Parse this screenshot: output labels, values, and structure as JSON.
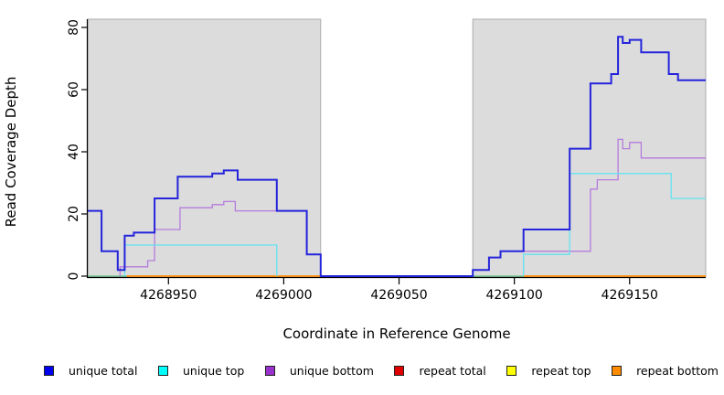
{
  "figure": {
    "x_axis_label": "Coordinate in Reference Genome",
    "y_axis_label": "Read Coverage Depth"
  },
  "legend": {
    "items": [
      {
        "label": "unique total",
        "color": "#0000ee"
      },
      {
        "label": "unique top",
        "color": "#00ffff"
      },
      {
        "label": "unique bottom",
        "color": "#9932cc"
      },
      {
        "label": "repeat total",
        "color": "#e00000"
      },
      {
        "label": "repeat top",
        "color": "#ffff00"
      },
      {
        "label": "repeat bottom",
        "color": "#ff8c00"
      }
    ],
    "swatch_border_color": "#222222"
  },
  "chart_data": {
    "type": "line",
    "line_style": "step-after",
    "title": "",
    "xlabel": "Coordinate in Reference Genome",
    "ylabel": "Read Coverage Depth",
    "x_range": [
      4268915,
      4269183
    ],
    "y_range": [
      0,
      83
    ],
    "x_ticks": [
      4268950,
      4269000,
      4269050,
      4269100,
      4269150
    ],
    "y_ticks": [
      0,
      20,
      40,
      60,
      80
    ],
    "grid": false,
    "legend_position": "bottom",
    "shaded_regions": [
      {
        "x0": 4268915,
        "x1": 4269016,
        "fill": "#dcdcdc",
        "stroke": "#ababab"
      },
      {
        "x0": 4269082,
        "x1": 4269183,
        "fill": "#dcdcdc",
        "stroke": "#ababab"
      }
    ],
    "gap_region": {
      "x0": 4269016,
      "x1": 4269082
    },
    "series": [
      {
        "name": "baseline",
        "color": "#5fbe7e",
        "width": 1.3,
        "in_legend": false,
        "segments": [
          {
            "steps": [
              [
                4268915,
                0
              ]
            ],
            "end": 4268932,
            "drop_start": false,
            "drop_end": false
          },
          {
            "steps": [
              [
                4269082,
                0
              ]
            ],
            "end": 4269104,
            "drop_start": false,
            "drop_end": false
          }
        ]
      },
      {
        "name": "repeat total",
        "color": "#e00000",
        "width": 1.3,
        "in_legend": true,
        "segments": []
      },
      {
        "name": "repeat top",
        "color": "#ffff00",
        "width": 1.3,
        "in_legend": true,
        "segments": []
      },
      {
        "name": "repeat bottom",
        "color": "#ff8c00",
        "width": 1.8,
        "in_legend": true,
        "segments": [
          {
            "steps": [
              [
                4268932,
                0
              ]
            ],
            "end": 4269016,
            "drop_start": false,
            "drop_end": false
          },
          {
            "steps": [
              [
                4269104,
                0
              ]
            ],
            "end": 4269183,
            "drop_start": false,
            "drop_end": false
          }
        ]
      },
      {
        "name": "unique bottom",
        "color": "#b57bdc",
        "width": 1.3,
        "in_legend": true,
        "segments": [
          {
            "steps": [
              [
                4268929,
                3
              ],
              [
                4268941,
                5
              ],
              [
                4268944,
                15
              ],
              [
                4268955,
                22
              ],
              [
                4268969,
                23
              ],
              [
                4268974,
                24
              ],
              [
                4268979,
                21
              ],
              [
                4269010,
                7
              ]
            ],
            "end": 4269016,
            "drop_start": true,
            "drop_end": true
          },
          {
            "steps": [
              [
                4269082,
                2
              ],
              [
                4269089,
                6
              ],
              [
                4269094,
                8
              ],
              [
                4269133,
                28
              ],
              [
                4269136,
                31
              ],
              [
                4269145,
                44
              ],
              [
                4269147,
                41
              ],
              [
                4269150,
                43
              ],
              [
                4269155,
                38
              ]
            ],
            "end": 4269183,
            "drop_start": true,
            "drop_end": false
          }
        ]
      },
      {
        "name": "unique top",
        "color": "#63e3f0",
        "width": 1.3,
        "in_legend": true,
        "segments": [
          {
            "steps": [
              [
                4268931,
                10
              ]
            ],
            "end": 4268997,
            "drop_start": true,
            "drop_end": true
          },
          {
            "steps": [
              [
                4269104,
                7
              ],
              [
                4269124,
                33
              ],
              [
                4269168,
                25
              ]
            ],
            "end": 4269183,
            "drop_start": true,
            "drop_end": false
          }
        ]
      },
      {
        "name": "unique total",
        "color": "#2424db",
        "width": 2,
        "in_legend": true,
        "segments": [
          {
            "steps": [
              [
                4268915,
                21
              ],
              [
                4268921,
                8
              ],
              [
                4268928,
                2
              ],
              [
                4268931,
                13
              ],
              [
                4268935,
                14
              ],
              [
                4268944,
                25
              ],
              [
                4268954,
                32
              ],
              [
                4268969,
                33
              ],
              [
                4268974,
                34
              ],
              [
                4268980,
                31
              ],
              [
                4268997,
                21
              ],
              [
                4269010,
                7
              ],
              [
                4269016,
                0
              ],
              [
                4269082,
                2
              ],
              [
                4269089,
                6
              ],
              [
                4269094,
                8
              ],
              [
                4269104,
                15
              ],
              [
                4269124,
                41
              ],
              [
                4269133,
                62
              ],
              [
                4269142,
                65
              ],
              [
                4269145,
                77
              ],
              [
                4269147,
                75
              ],
              [
                4269150,
                76
              ],
              [
                4269155,
                72
              ],
              [
                4269167,
                65
              ],
              [
                4269171,
                63
              ]
            ],
            "end": 4269183,
            "drop_start": false,
            "drop_end": false
          }
        ]
      }
    ]
  }
}
